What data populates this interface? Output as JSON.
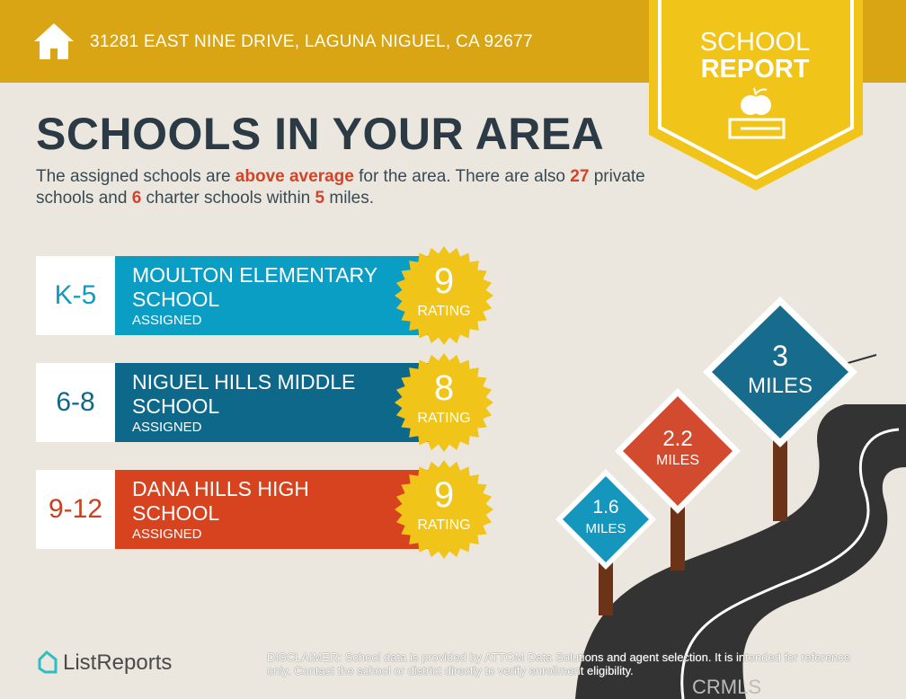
{
  "header": {
    "address": "31281 EAST NINE DRIVE, LAGUNA NIGUEL, CA 92677",
    "icon": "home-icon"
  },
  "badge": {
    "line1": "SCHOOL",
    "line2": "REPORT",
    "icon": "apple-book-icon"
  },
  "title": "SCHOOLS IN YOUR AREA",
  "intro": {
    "p1": "The assigned schools are ",
    "hl1": "above average",
    "p2": " for the area. There are also ",
    "private_count": "27",
    "p3": " private schools and ",
    "charter_count": "6",
    "p4": " charter schools within ",
    "miles": "5",
    "p5": " miles."
  },
  "schools": [
    {
      "grade": "K-5",
      "name": "MOULTON ELEMENTARY SCHOOL",
      "status": "ASSIGNED",
      "rating": "9",
      "rating_label": "RATING",
      "color": "#0a9ec4",
      "grade_color": "#0a9ec4"
    },
    {
      "grade": "6-8",
      "name": "NIGUEL HILLS MIDDLE SCHOOL",
      "status": "ASSIGNED",
      "rating": "8",
      "rating_label": "RATING",
      "color": "#0e6889",
      "grade_color": "#0e6889"
    },
    {
      "grade": "9-12",
      "name": "DANA HILLS HIGH SCHOOL",
      "status": "ASSIGNED",
      "rating": "9",
      "rating_label": "RATING",
      "color": "#d8431f",
      "grade_color": "#c8401f"
    }
  ],
  "signs": [
    {
      "value": "3",
      "unit": "MILES",
      "color": "#176b8c"
    },
    {
      "value": "2.2",
      "unit": "MILES",
      "color": "#d34b2f"
    },
    {
      "value": "1.6",
      "unit": "MILES",
      "color": "#1597bd"
    }
  ],
  "footer": {
    "logo": "ListReports",
    "disclaimer_label": "DISCLAIMER:",
    "disclaimer": " School data is provided by ATTOM Data Solutions and agent selection. It is intended for reference only. Contact the school or district directly to verify enrollment eligibility.",
    "watermark": "CRMLS"
  }
}
